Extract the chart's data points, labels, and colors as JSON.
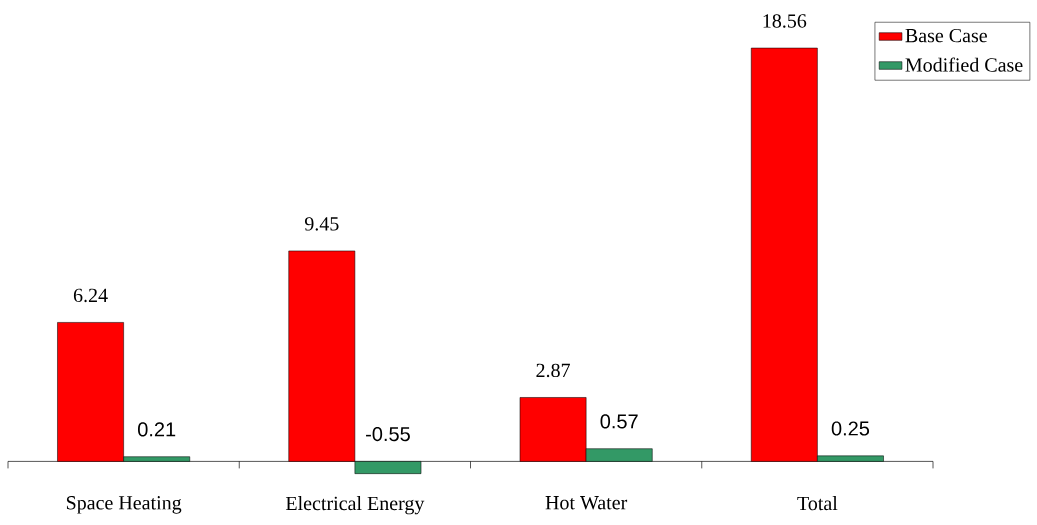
{
  "chart_data": {
    "type": "bar",
    "categories": [
      "Space Heating",
      "Electrical Energy",
      "Hot Water",
      "Total"
    ],
    "series": [
      {
        "name": "Base Case",
        "color": "#ff0000",
        "values": [
          6.24,
          9.45,
          2.87,
          18.56
        ]
      },
      {
        "name": "Modified Case",
        "color": "#339966",
        "values": [
          0.21,
          -0.55,
          0.57,
          0.25
        ]
      }
    ],
    "data_labels": true,
    "legend": "top right"
  }
}
